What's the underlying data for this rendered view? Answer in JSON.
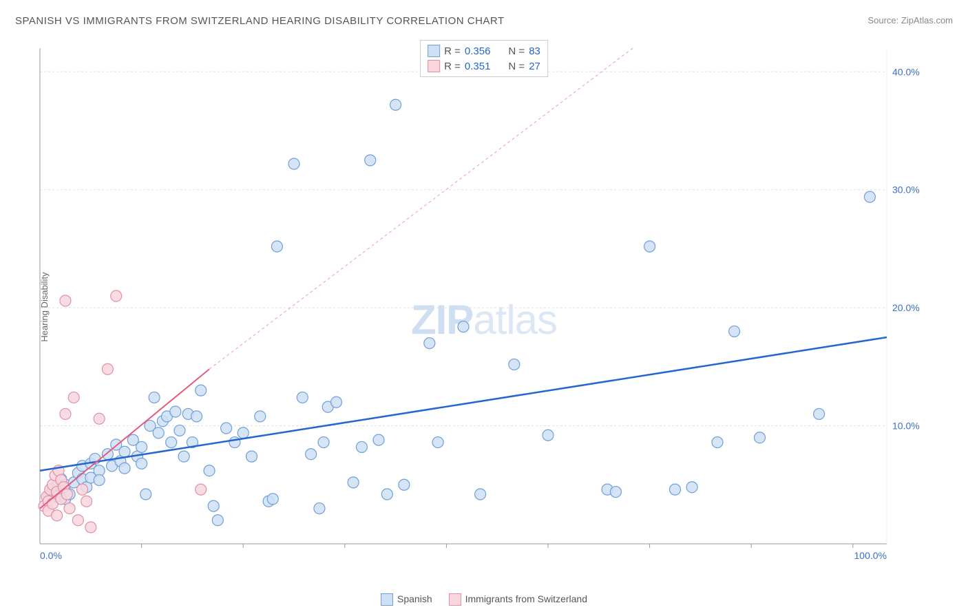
{
  "title": "SPANISH VS IMMIGRANTS FROM SWITZERLAND HEARING DISABILITY CORRELATION CHART",
  "source": "Source: ZipAtlas.com",
  "ylabel": "Hearing Disability",
  "watermark": {
    "left": "ZIP",
    "right": "atlas"
  },
  "chart": {
    "type": "scatter",
    "background_color": "#ffffff",
    "grid_color": "#dddddd",
    "marker_radius": 8,
    "marker_stroke_width": 1.2,
    "xlim": [
      0,
      100
    ],
    "ylim": [
      0,
      42
    ],
    "xticks": [
      0,
      100
    ],
    "xtick_labels": [
      "0.0%",
      "100.0%"
    ],
    "xtick_minor": [
      12,
      24,
      36,
      48,
      60,
      72,
      84,
      96
    ],
    "yticks": [
      10,
      20,
      30,
      40
    ],
    "ytick_labels": [
      "10.0%",
      "20.0%",
      "30.0%",
      "40.0%"
    ],
    "series": [
      {
        "name": "Spanish",
        "fill": "#cfe0f5",
        "stroke": "#6f9ed9",
        "swatch_fill": "#cfe0f5",
        "swatch_stroke": "#6f9ed9",
        "R": "0.356",
        "N": "83",
        "trend": {
          "x1": 0,
          "y1": 6.2,
          "x2": 100,
          "y2": 17.5,
          "color": "#2466d1",
          "width": 2.5,
          "dash": "none"
        },
        "points": [
          [
            1,
            4
          ],
          [
            1.5,
            4.5
          ],
          [
            2,
            5
          ],
          [
            2,
            4
          ],
          [
            2.5,
            5.5
          ],
          [
            3,
            3.8
          ],
          [
            3,
            5
          ],
          [
            3.5,
            4.2
          ],
          [
            4,
            5.2
          ],
          [
            4.5,
            6
          ],
          [
            5,
            5.5
          ],
          [
            5,
            6.6
          ],
          [
            5.5,
            4.8
          ],
          [
            6,
            6.8
          ],
          [
            6,
            5.6
          ],
          [
            6.5,
            7.2
          ],
          [
            7,
            6.2
          ],
          [
            7,
            5.4
          ],
          [
            8,
            7.6
          ],
          [
            8.5,
            6.6
          ],
          [
            9,
            8.4
          ],
          [
            9.5,
            7
          ],
          [
            10,
            7.8
          ],
          [
            10,
            6.4
          ],
          [
            11,
            8.8
          ],
          [
            11.5,
            7.4
          ],
          [
            12,
            6.8
          ],
          [
            12,
            8.2
          ],
          [
            12.5,
            4.2
          ],
          [
            13,
            10
          ],
          [
            13.5,
            12.4
          ],
          [
            14,
            9.4
          ],
          [
            14.5,
            10.4
          ],
          [
            15,
            10.8
          ],
          [
            15.5,
            8.6
          ],
          [
            16,
            11.2
          ],
          [
            16.5,
            9.6
          ],
          [
            17,
            7.4
          ],
          [
            17.5,
            11
          ],
          [
            18,
            8.6
          ],
          [
            18.5,
            10.8
          ],
          [
            19,
            13
          ],
          [
            20,
            6.2
          ],
          [
            20.5,
            3.2
          ],
          [
            21,
            2
          ],
          [
            22,
            9.8
          ],
          [
            23,
            8.6
          ],
          [
            24,
            9.4
          ],
          [
            25,
            7.4
          ],
          [
            26,
            10.8
          ],
          [
            27,
            3.6
          ],
          [
            27.5,
            3.8
          ],
          [
            28,
            25.2
          ],
          [
            30,
            32.2
          ],
          [
            31,
            12.4
          ],
          [
            32,
            7.6
          ],
          [
            33,
            3
          ],
          [
            33.5,
            8.6
          ],
          [
            34,
            11.6
          ],
          [
            35,
            12
          ],
          [
            37,
            5.2
          ],
          [
            38,
            8.2
          ],
          [
            39,
            32.5
          ],
          [
            40,
            8.8
          ],
          [
            41,
            4.2
          ],
          [
            42,
            37.2
          ],
          [
            43,
            5
          ],
          [
            46,
            17
          ],
          [
            47,
            8.6
          ],
          [
            50,
            18.4
          ],
          [
            52,
            4.2
          ],
          [
            56,
            15.2
          ],
          [
            60,
            9.2
          ],
          [
            67,
            4.6
          ],
          [
            68,
            4.4
          ],
          [
            72,
            25.2
          ],
          [
            75,
            4.6
          ],
          [
            77,
            4.8
          ],
          [
            80,
            8.6
          ],
          [
            82,
            18
          ],
          [
            85,
            9
          ],
          [
            92,
            11
          ],
          [
            98,
            29.4
          ]
        ]
      },
      {
        "name": "Immigrants from Switzerland",
        "fill": "#f7d6de",
        "stroke": "#e48fa2",
        "swatch_fill": "#f7d6de",
        "swatch_stroke": "#e48fa2",
        "R": "0.351",
        "N": "27",
        "trend": {
          "x1": 0,
          "y1": 3,
          "x2": 20,
          "y2": 14.8,
          "color": "#e55b7c",
          "width": 2,
          "dash": "none"
        },
        "trend_ext": {
          "x1": 20,
          "y1": 14.8,
          "x2": 70,
          "y2": 42,
          "color": "#f2a8b9",
          "width": 1.2,
          "dash": "4 4"
        },
        "points": [
          [
            0.5,
            3.2
          ],
          [
            0.8,
            4
          ],
          [
            1,
            3.6
          ],
          [
            1,
            2.8
          ],
          [
            1.2,
            4.6
          ],
          [
            1.5,
            5
          ],
          [
            1.5,
            3.4
          ],
          [
            1.8,
            5.8
          ],
          [
            2,
            4.4
          ],
          [
            2,
            2.4
          ],
          [
            2.2,
            6.2
          ],
          [
            2.5,
            3.8
          ],
          [
            2.5,
            5.4
          ],
          [
            2.8,
            4.8
          ],
          [
            3,
            11
          ],
          [
            3.2,
            4.2
          ],
          [
            3.5,
            3
          ],
          [
            4,
            12.4
          ],
          [
            4.5,
            2
          ],
          [
            5,
            4.6
          ],
          [
            5.5,
            3.6
          ],
          [
            6,
            1.4
          ],
          [
            7,
            10.6
          ],
          [
            8,
            14.8
          ],
          [
            9,
            21
          ],
          [
            3,
            20.6
          ],
          [
            19,
            4.6
          ]
        ]
      }
    ]
  },
  "statsLegend": {
    "R_label": "R =",
    "N_label": "N ="
  }
}
